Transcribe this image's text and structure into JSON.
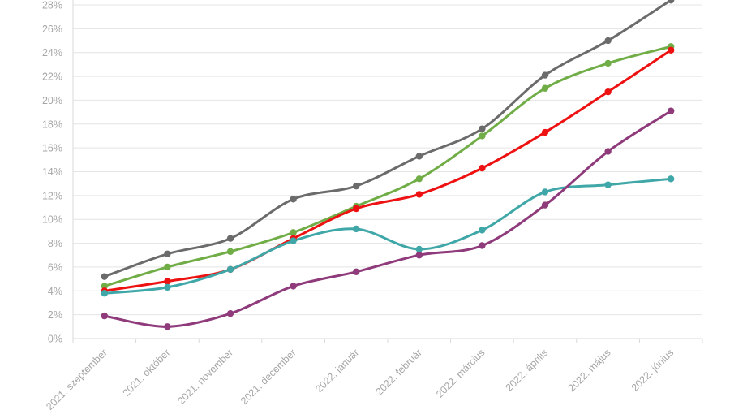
{
  "chart_data": {
    "type": "line",
    "title": "",
    "xlabel": "",
    "ylabel": "",
    "categories": [
      "2021. szeptember",
      "2021. október",
      "2021. november",
      "2021. december",
      "2022. január",
      "2022. február",
      "2022. március",
      "2022. április",
      "2022. május",
      "2022. június"
    ],
    "ylim": [
      0,
      28
    ],
    "ytick_step": 2,
    "ytick_labels": [
      "0%",
      "2%",
      "4%",
      "6%",
      "8%",
      "10%",
      "12%",
      "14%",
      "16%",
      "18%",
      "20%",
      "22%",
      "24%",
      "26%",
      "28%"
    ],
    "grid": true,
    "legend": "none",
    "smooth": true,
    "series": [
      {
        "color": "#6b6b6b",
        "values": [
          5.2,
          7.1,
          8.4,
          11.7,
          12.8,
          15.3,
          17.6,
          22.1,
          25.0,
          28.4
        ]
      },
      {
        "color": "#70ad47",
        "values": [
          4.4,
          6.0,
          7.3,
          8.9,
          11.1,
          13.4,
          17.0,
          21.0,
          23.1,
          24.5
        ]
      },
      {
        "color": "#ee1111",
        "values": [
          4.0,
          4.8,
          5.8,
          8.4,
          10.9,
          12.1,
          14.3,
          17.3,
          20.7,
          24.2
        ]
      },
      {
        "color": "#3fa7a7",
        "values": [
          3.8,
          4.3,
          5.8,
          8.2,
          9.2,
          7.5,
          9.1,
          12.3,
          12.9,
          13.4
        ]
      },
      {
        "color": "#8e3a7b",
        "values": [
          1.9,
          1.0,
          2.1,
          4.4,
          5.6,
          7.0,
          7.8,
          11.2,
          15.7,
          19.1
        ]
      }
    ]
  }
}
